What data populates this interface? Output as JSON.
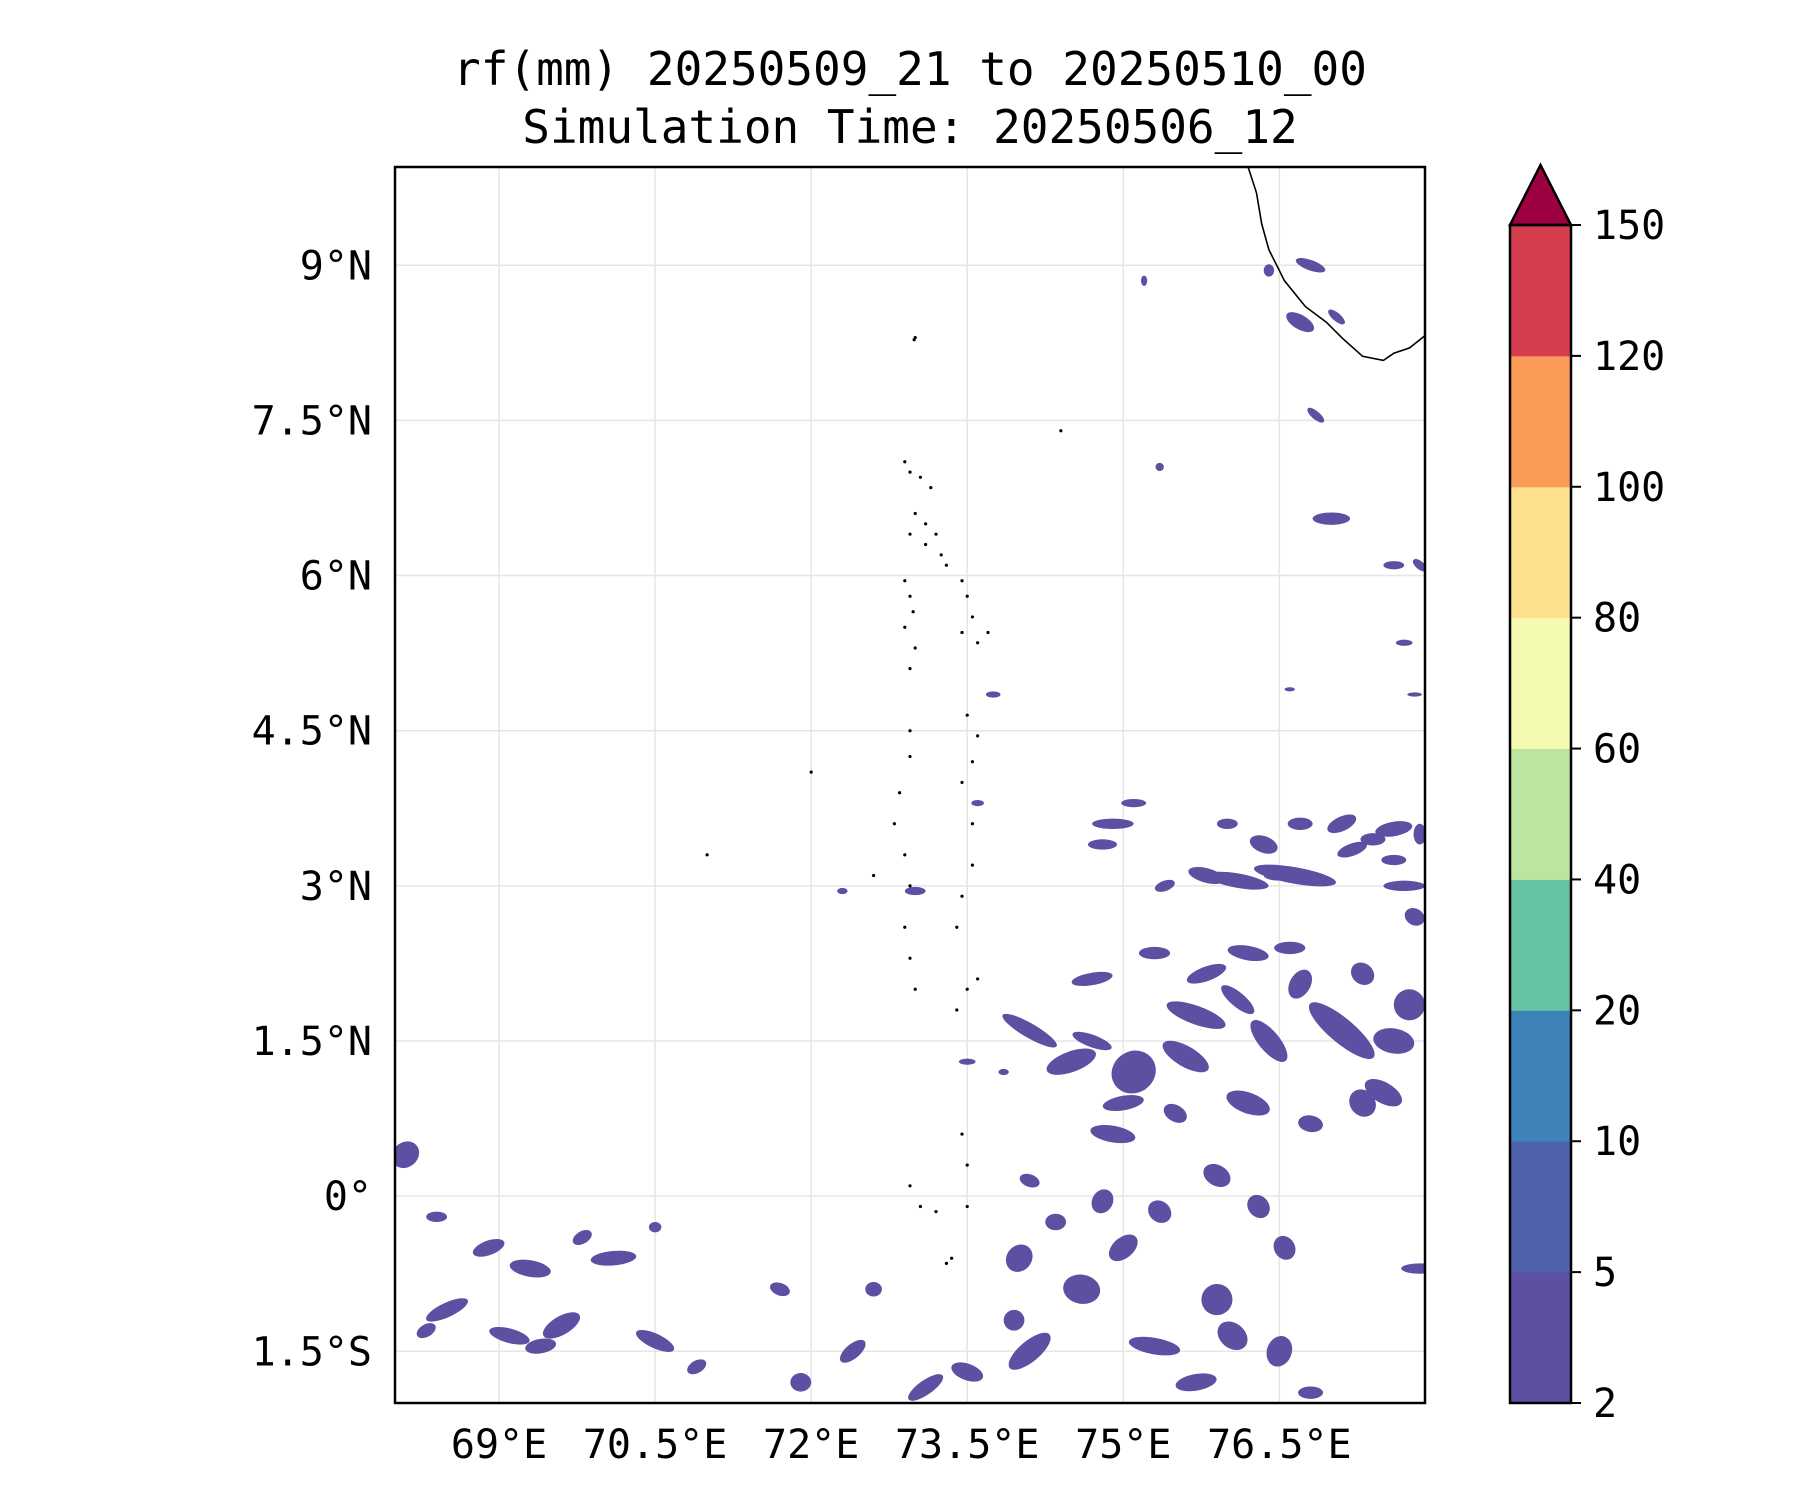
{
  "title": {
    "line1": "rf(mm) 20250509_21 to 20250510_00",
    "line2": "Simulation Time: 20250506_12"
  },
  "map": {
    "lon_range": [
      68.0,
      77.9
    ],
    "lat_range": [
      -2.0,
      9.95
    ],
    "lon_ticks": [
      {
        "value": 69.0,
        "label": "69°E"
      },
      {
        "value": 70.5,
        "label": "70.5°E"
      },
      {
        "value": 72.0,
        "label": "72°E"
      },
      {
        "value": 73.5,
        "label": "73.5°E"
      },
      {
        "value": 75.0,
        "label": "75°E"
      },
      {
        "value": 76.5,
        "label": "76.5°E"
      }
    ],
    "lat_ticks": [
      {
        "value": 9.0,
        "label": "9°N"
      },
      {
        "value": 7.5,
        "label": "7.5°N"
      },
      {
        "value": 6.0,
        "label": "6°N"
      },
      {
        "value": 4.5,
        "label": "4.5°N"
      },
      {
        "value": 3.0,
        "label": "3°N"
      },
      {
        "value": 1.5,
        "label": "1.5°N"
      },
      {
        "value": 0.0,
        "label": "0°"
      },
      {
        "value": -1.5,
        "label": "1.5°S"
      }
    ],
    "gridlines": true,
    "coastline": [
      [
        76.2,
        9.95
      ],
      [
        76.28,
        9.7
      ],
      [
        76.33,
        9.4
      ],
      [
        76.4,
        9.15
      ],
      [
        76.55,
        8.85
      ],
      [
        76.75,
        8.6
      ],
      [
        76.95,
        8.45
      ],
      [
        77.1,
        8.3
      ],
      [
        77.3,
        8.12
      ],
      [
        77.5,
        8.08
      ],
      [
        77.6,
        8.15
      ],
      [
        77.75,
        8.2
      ],
      [
        77.9,
        8.32
      ]
    ],
    "islands": [
      [
        72.99,
        8.28
      ],
      [
        73.0,
        8.3
      ],
      [
        72.9,
        7.1
      ],
      [
        72.95,
        7.0
      ],
      [
        73.05,
        6.95
      ],
      [
        73.15,
        6.85
      ],
      [
        73.0,
        6.6
      ],
      [
        73.1,
        6.5
      ],
      [
        73.2,
        6.4
      ],
      [
        73.25,
        6.2
      ],
      [
        73.3,
        6.1
      ],
      [
        72.95,
        6.4
      ],
      [
        73.1,
        6.3
      ],
      [
        72.9,
        5.95
      ],
      [
        72.95,
        5.8
      ],
      [
        72.98,
        5.65
      ],
      [
        72.9,
        5.5
      ],
      [
        73.0,
        5.3
      ],
      [
        72.95,
        5.1
      ],
      [
        73.45,
        5.95
      ],
      [
        73.5,
        5.8
      ],
      [
        73.55,
        5.6
      ],
      [
        73.45,
        5.45
      ],
      [
        73.6,
        5.35
      ],
      [
        73.7,
        5.45
      ],
      [
        73.5,
        4.65
      ],
      [
        73.6,
        4.45
      ],
      [
        73.55,
        4.2
      ],
      [
        73.45,
        4.0
      ],
      [
        72.95,
        4.5
      ],
      [
        72.95,
        4.25
      ],
      [
        72.85,
        3.9
      ],
      [
        72.8,
        3.6
      ],
      [
        72.9,
        3.3
      ],
      [
        72.95,
        3.0
      ],
      [
        73.55,
        3.6
      ],
      [
        73.55,
        3.2
      ],
      [
        73.45,
        2.9
      ],
      [
        73.4,
        2.6
      ],
      [
        72.9,
        2.6
      ],
      [
        72.95,
        2.3
      ],
      [
        73.5,
        2.0
      ],
      [
        73.6,
        2.1
      ],
      [
        73.4,
        1.8
      ],
      [
        73.45,
        0.6
      ],
      [
        73.5,
        0.3
      ],
      [
        73.35,
        -0.6
      ],
      [
        73.3,
        -0.65
      ],
      [
        72.95,
        0.1
      ],
      [
        73.05,
        -0.1
      ],
      [
        73.2,
        -0.15
      ],
      [
        73.5,
        -0.1
      ],
      [
        72.6,
        3.1
      ],
      [
        73.0,
        2.0
      ],
      [
        72.0,
        4.1
      ],
      [
        71.0,
        3.3
      ],
      [
        74.4,
        7.4
      ]
    ],
    "rain_color": "#5e4fa2",
    "rain_areas": [
      [
        68.1,
        0.4,
        0.14,
        0.12,
        40
      ],
      [
        68.9,
        -0.5,
        0.16,
        0.07,
        20
      ],
      [
        69.3,
        -0.7,
        0.2,
        0.08,
        -10
      ],
      [
        68.5,
        -1.1,
        0.22,
        0.07,
        25
      ],
      [
        69.1,
        -1.35,
        0.2,
        0.07,
        -15
      ],
      [
        69.6,
        -1.25,
        0.2,
        0.09,
        30
      ],
      [
        70.1,
        -0.6,
        0.22,
        0.07,
        5
      ],
      [
        70.5,
        -1.4,
        0.2,
        0.07,
        -25
      ],
      [
        69.4,
        -1.45,
        0.15,
        0.07,
        10
      ],
      [
        68.4,
        -0.2,
        0.1,
        0.05,
        0
      ],
      [
        69.8,
        -0.4,
        0.1,
        0.06,
        30
      ],
      [
        72.4,
        -1.5,
        0.15,
        0.07,
        40
      ],
      [
        73.5,
        -1.7,
        0.16,
        0.08,
        -20
      ],
      [
        73.1,
        -1.85,
        0.2,
        0.07,
        35
      ],
      [
        74.1,
        -1.5,
        0.25,
        0.1,
        40
      ],
      [
        74.6,
        -0.9,
        0.14,
        0.18,
        80
      ],
      [
        75.0,
        -0.5,
        0.16,
        0.1,
        40
      ],
      [
        75.3,
        -1.45,
        0.25,
        0.08,
        -10
      ],
      [
        75.9,
        -1.0,
        0.15,
        0.15,
        60
      ],
      [
        74.0,
        -0.6,
        0.12,
        0.14,
        -40
      ],
      [
        76.5,
        -1.5,
        0.15,
        0.12,
        70
      ],
      [
        75.7,
        -1.8,
        0.2,
        0.08,
        10
      ],
      [
        76.8,
        -1.9,
        0.12,
        0.06,
        0
      ],
      [
        77.85,
        -0.7,
        0.05,
        0.18,
        90
      ],
      [
        74.7,
        1.5,
        0.2,
        0.06,
        -20
      ],
      [
        74.1,
        1.6,
        0.3,
        0.07,
        -30
      ],
      [
        74.5,
        1.3,
        0.25,
        0.1,
        20
      ],
      [
        75.1,
        1.2,
        0.2,
        0.22,
        -55
      ],
      [
        75.6,
        1.35,
        0.25,
        0.1,
        -30
      ],
      [
        75.7,
        1.75,
        0.3,
        0.09,
        -20
      ],
      [
        76.1,
        1.9,
        0.2,
        0.07,
        -40
      ],
      [
        76.4,
        1.5,
        0.25,
        0.1,
        -50
      ],
      [
        76.2,
        0.9,
        0.1,
        0.22,
        70
      ],
      [
        77.1,
        1.6,
        0.4,
        0.12,
        -40
      ],
      [
        77.5,
        1.0,
        0.1,
        0.2,
        60
      ],
      [
        77.6,
        1.5,
        0.12,
        0.2,
        80
      ],
      [
        77.75,
        1.85,
        0.15,
        0.15,
        -20
      ],
      [
        77.3,
        0.9,
        0.12,
        0.14,
        40
      ],
      [
        76.7,
        2.05,
        0.15,
        0.1,
        60
      ],
      [
        74.9,
        0.6,
        0.08,
        0.22,
        80
      ],
      [
        75.5,
        0.8,
        0.12,
        0.08,
        -30
      ],
      [
        75.0,
        0.9,
        0.2,
        0.07,
        10
      ],
      [
        76.8,
        0.7,
        0.12,
        0.08,
        -10
      ],
      [
        75.8,
        2.15,
        0.2,
        0.07,
        20
      ],
      [
        76.2,
        2.35,
        0.2,
        0.07,
        -10
      ],
      [
        76.6,
        2.4,
        0.15,
        0.06,
        0
      ],
      [
        75.3,
        2.35,
        0.15,
        0.06,
        0
      ],
      [
        74.7,
        2.1,
        0.2,
        0.06,
        10
      ],
      [
        77.3,
        2.15,
        0.1,
        0.12,
        50
      ],
      [
        76.65,
        3.1,
        0.4,
        0.08,
        -10
      ],
      [
        77.2,
        3.35,
        0.15,
        0.06,
        20
      ],
      [
        77.7,
        3.0,
        0.2,
        0.05,
        0
      ],
      [
        75.8,
        3.1,
        0.18,
        0.07,
        -15
      ],
      [
        76.1,
        3.05,
        0.3,
        0.07,
        -10
      ],
      [
        76.7,
        3.6,
        0.12,
        0.06,
        0
      ],
      [
        77.1,
        3.6,
        0.15,
        0.07,
        25
      ],
      [
        77.6,
        3.55,
        0.18,
        0.07,
        10
      ],
      [
        77.85,
        3.5,
        0.06,
        0.1,
        0
      ],
      [
        77.4,
        3.45,
        0.12,
        0.06,
        0
      ],
      [
        74.9,
        3.6,
        0.2,
        0.05,
        0
      ],
      [
        75.1,
        3.8,
        0.12,
        0.04,
        0
      ],
      [
        74.8,
        3.4,
        0.14,
        0.05,
        0
      ],
      [
        76.0,
        3.6,
        0.1,
        0.05,
        0
      ],
      [
        76.35,
        3.4,
        0.08,
        0.14,
        70
      ],
      [
        77.6,
        3.25,
        0.12,
        0.05,
        0
      ],
      [
        77.8,
        2.7,
        0.08,
        0.1,
        60
      ],
      [
        76.8,
        9.0,
        0.15,
        0.05,
        -20
      ],
      [
        76.7,
        8.45,
        0.15,
        0.07,
        -30
      ],
      [
        77.05,
        8.5,
        0.1,
        0.04,
        -40
      ],
      [
        76.85,
        7.55,
        0.1,
        0.04,
        -40
      ],
      [
        77.0,
        6.55,
        0.18,
        0.06,
        0
      ],
      [
        77.6,
        6.1,
        0.1,
        0.04,
        0
      ],
      [
        77.85,
        6.1,
        0.08,
        0.04,
        -40
      ],
      [
        76.5,
        3.1,
        0.15,
        0.05,
        0
      ],
      [
        75.4,
        3.0,
        0.1,
        0.05,
        20
      ],
      [
        74.1,
        0.15,
        0.06,
        0.1,
        70
      ],
      [
        74.8,
        -0.05,
        0.12,
        0.1,
        60
      ],
      [
        75.35,
        -0.15,
        0.1,
        0.12,
        50
      ],
      [
        75.9,
        0.2,
        0.1,
        0.14,
        60
      ],
      [
        76.3,
        -0.1,
        0.1,
        0.12,
        40
      ],
      [
        76.55,
        -0.5,
        0.1,
        0.12,
        30
      ],
      [
        76.05,
        -1.35,
        0.12,
        0.16,
        50
      ],
      [
        74.35,
        -0.25,
        0.1,
        0.08,
        0
      ],
      [
        73.95,
        -1.2,
        0.1,
        0.1,
        40
      ],
      [
        72.6,
        -0.9,
        0.08,
        0.07,
        0
      ],
      [
        71.7,
        -0.9,
        0.06,
        0.1,
        70
      ],
      [
        71.9,
        -1.8,
        0.1,
        0.09,
        0
      ],
      [
        70.9,
        -1.65,
        0.1,
        0.06,
        30
      ],
      [
        70.5,
        -0.3,
        0.06,
        0.05,
        0
      ],
      [
        68.3,
        -1.3,
        0.1,
        0.06,
        30
      ],
      [
        73.5,
        1.3,
        0.08,
        0.03,
        0
      ],
      [
        73.85,
        1.2,
        0.05,
        0.03,
        0
      ],
      [
        72.3,
        2.95,
        0.05,
        0.03,
        0
      ],
      [
        73.0,
        2.95,
        0.1,
        0.04,
        0
      ],
      [
        73.6,
        3.8,
        0.06,
        0.03,
        0
      ],
      [
        73.75,
        4.85,
        0.07,
        0.03,
        0
      ],
      [
        76.6,
        4.9,
        0.05,
        0.02,
        0
      ],
      [
        77.8,
        4.85,
        0.07,
        0.02,
        0
      ],
      [
        77.7,
        5.35,
        0.08,
        0.03,
        0
      ],
      [
        76.4,
        8.95,
        0.05,
        0.06,
        0
      ],
      [
        75.2,
        8.85,
        0.03,
        0.05,
        0
      ],
      [
        75.35,
        7.05,
        0.04,
        0.04,
        0
      ]
    ]
  },
  "colorbar": {
    "levels": [
      2,
      5,
      10,
      20,
      40,
      60,
      80,
      100,
      120,
      150
    ],
    "colors": [
      "#5e4fa2",
      "#4f62ab",
      "#3d82b9",
      "#66c2a5",
      "#bce59f",
      "#f4faaf",
      "#fde08b",
      "#fa9c58",
      "#d53e4f"
    ],
    "extend_color": "#9e0142",
    "labels": [
      "2",
      "5",
      "10",
      "20",
      "40",
      "60",
      "80",
      "100",
      "120",
      "150"
    ]
  }
}
